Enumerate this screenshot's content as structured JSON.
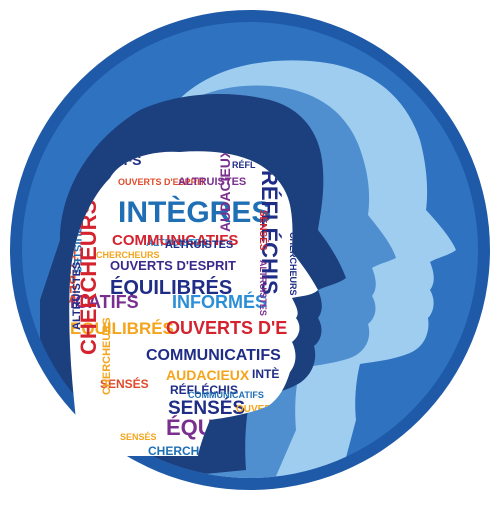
{
  "emblem": {
    "description_hidden": "",
    "words": [
      {
        "text": "CATIFS",
        "color": "#1f2d86"
      },
      {
        "text": "OUVERTS D'ESPRIT",
        "color": "#e14b2a"
      },
      {
        "text": "ALTRUISTES",
        "color": "#7a2f8f"
      },
      {
        "text": "RÉFL",
        "color": "#1f2d86"
      },
      {
        "text": "INTÈGRES",
        "color": "#1f6fb5"
      },
      {
        "text": "ALTRUISTES",
        "color": "#2a8fd6"
      },
      {
        "text": "COMMUNICATIFS",
        "color": "#d4232f"
      },
      {
        "text": "CHERCHEURS",
        "color": "#f4a51c"
      },
      {
        "text": "ALTRUISTES",
        "color": "#1f2d86"
      },
      {
        "text": "OUVERTS D'ESPRIT",
        "color": "#3b2a8c"
      },
      {
        "text": "ÉQUILIBRÉS",
        "color": "#1f2d86"
      },
      {
        "text": "INFORMÉS",
        "color": "#2a8fd6"
      },
      {
        "text": "ICATIFS",
        "color": "#7a2f8f"
      },
      {
        "text": "ÉQUILIBRÉS",
        "color": "#f4a51c"
      },
      {
        "text": "OUVERTS D'E",
        "color": "#d4232f"
      },
      {
        "text": "COMMUNICATIFS",
        "color": "#1f2d86"
      },
      {
        "text": "AUDACIEUX",
        "color": "#f4a51c"
      },
      {
        "text": "INTÈ",
        "color": "#1f2d86"
      },
      {
        "text": "SENSÉS",
        "color": "#e14b2a"
      },
      {
        "text": "RÉFLÉCHIS",
        "color": "#1f2d86"
      },
      {
        "text": "SENSÉS",
        "color": "#1f2d86"
      },
      {
        "text": "OUVERT",
        "color": "#f4a51c"
      },
      {
        "text": "ÉQUILIBRÉ",
        "color": "#7a2f8f"
      },
      {
        "text": "CHERCHEURS",
        "color": "#1f6fb5"
      },
      {
        "text": "RÉFLÉCHIS",
        "color": "#1f2d86"
      },
      {
        "text": "AUDACIEUX",
        "color": "#7a2f8f"
      },
      {
        "text": "INTÈGRES",
        "color": "#e14b2a"
      },
      {
        "text": "ALTRUISTES",
        "color": "#1f6fb5"
      },
      {
        "text": "CHERCHEURS",
        "color": "#d4232f"
      },
      {
        "text": "ALTRUISTES",
        "color": "#1f2d86"
      },
      {
        "text": "CHERCHEURS",
        "color": "#f4a51c"
      },
      {
        "text": "SENSÉS",
        "color": "#d4232f"
      },
      {
        "text": "ALTRUISTES",
        "color": "#7a2f8f"
      },
      {
        "text": "SENSÉS",
        "color": "#f4a51c"
      },
      {
        "text": "COMMUNICATIFS",
        "color": "#1f6fb5"
      },
      {
        "text": "CHERCHEURS",
        "color": "#1f2d86"
      }
    ],
    "colors": {
      "ring": "#1f5aa8",
      "inner": "#2e72c0",
      "head_far": "#9fcdf0",
      "head_mid": "#4f8fd0",
      "head_near": "#1c3f7d"
    }
  }
}
